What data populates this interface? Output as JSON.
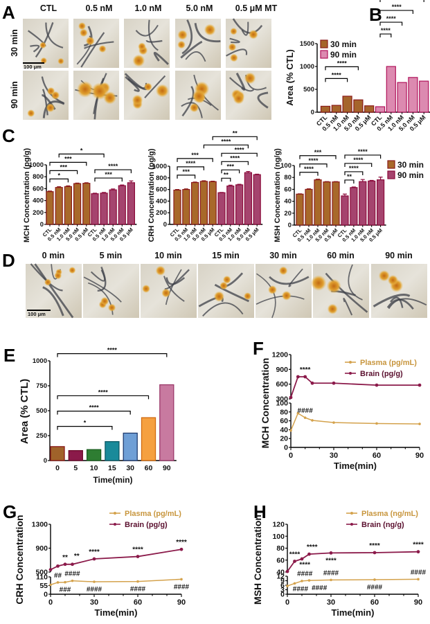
{
  "labels": {
    "A": "A",
    "B": "B",
    "C": "C",
    "D": "D",
    "E": "E",
    "F": "F",
    "G": "G",
    "H": "H"
  },
  "panel_A": {
    "columns": [
      "CTL",
      "0.5 nM",
      "1.0 nM",
      "5.0 nM",
      "0.5 μM MT"
    ],
    "rows": [
      "30 min",
      "90 min"
    ],
    "scale_bar": "100 μm"
  },
  "panel_D": {
    "columns": [
      "0 min",
      "5 min",
      "10 min",
      "15 min",
      "30 min",
      "60 min",
      "90 min"
    ],
    "scale_bar": "100 μm"
  },
  "chart_data": [
    {
      "panel": "B",
      "type": "bar",
      "categories": [
        "CTL",
        "0.5 nM",
        "1.0 nM",
        "5.0 nM",
        "0.5 μM"
      ],
      "series": [
        {
          "name": "30 min",
          "values": [
            130,
            150,
            350,
            270,
            140
          ],
          "color": "#a5652b",
          "edge": "#8b1a1a"
        },
        {
          "name": "90 min",
          "values": [
            120,
            1000,
            650,
            760,
            680
          ],
          "color": "#dc8ab0",
          "edge": "#b0125a"
        }
      ],
      "ylabel": "Area (% CTL)",
      "ylim": [
        0,
        1500
      ],
      "yticks": [
        0,
        500,
        1000,
        1500
      ],
      "legend": "top-left",
      "comparisons": [
        {
          "from": [
            0,
            0
          ],
          "to": [
            0,
            2
          ],
          "label": "****"
        },
        {
          "from": [
            0,
            0
          ],
          "to": [
            0,
            3
          ],
          "label": "****"
        },
        {
          "from": [
            1,
            0
          ],
          "to": [
            1,
            1
          ],
          "label": "****"
        },
        {
          "from": [
            1,
            0
          ],
          "to": [
            1,
            2
          ],
          "label": "****"
        },
        {
          "from": [
            1,
            0
          ],
          "to": [
            1,
            3
          ],
          "label": "****"
        },
        {
          "from": [
            1,
            0
          ],
          "to": [
            1,
            4
          ],
          "label": "****"
        }
      ]
    },
    {
      "panel": "C-MCH",
      "type": "bar",
      "categories": [
        "CTL",
        "0.5 nM",
        "1.0 nM",
        "5.0 nM",
        "0.5 μM"
      ],
      "series": [
        {
          "name": "30 min",
          "values": [
            550,
            620,
            635,
            685,
            690
          ],
          "errors": [
            10,
            12,
            12,
            8,
            10
          ],
          "color": "#a8692a",
          "edge": "#8b1a1a"
        },
        {
          "name": "90 min",
          "values": [
            515,
            525,
            580,
            650,
            700
          ],
          "errors": [
            8,
            12,
            15,
            12,
            30
          ],
          "color": "#a5446e",
          "edge": "#8b0a3a"
        }
      ],
      "ylabel": "MCH Concentration (pg/g)",
      "ylim": [
        0,
        1000
      ],
      "yticks": [
        0,
        200,
        400,
        600,
        800,
        1000
      ],
      "comparisons": [
        {
          "from": [
            0,
            0
          ],
          "to": [
            0,
            2
          ],
          "label": "*"
        },
        {
          "from": [
            0,
            0
          ],
          "to": [
            0,
            3
          ],
          "label": "***"
        },
        {
          "from": [
            0,
            0
          ],
          "to": [
            0,
            4
          ],
          "label": "***"
        },
        {
          "from": [
            0,
            1
          ],
          "to": [
            1,
            1
          ],
          "label": "*"
        },
        {
          "from": [
            1,
            0
          ],
          "to": [
            1,
            3
          ],
          "label": "***"
        },
        {
          "from": [
            1,
            0
          ],
          "to": [
            1,
            4
          ],
          "label": "****"
        }
      ]
    },
    {
      "panel": "C-CRH",
      "type": "bar",
      "categories": [
        "CTL",
        "0.5 nM",
        "1.0 nM",
        "5.0 nM",
        "0.5 μM"
      ],
      "series": [
        {
          "name": "30 min",
          "values": [
            590,
            600,
            720,
            740,
            735
          ],
          "errors": [
            10,
            10,
            8,
            10,
            8
          ],
          "color": "#a8692a",
          "edge": "#8b1a1a"
        },
        {
          "name": "90 min",
          "values": [
            545,
            660,
            680,
            890,
            855
          ],
          "errors": [
            5,
            15,
            10,
            20,
            8
          ],
          "color": "#a5446e",
          "edge": "#8b0a3a"
        }
      ],
      "ylabel": "CRH Concentration (pg/g)",
      "ylim": [
        0,
        1000
      ],
      "yticks": [
        0,
        200,
        400,
        600,
        800,
        1000
      ],
      "comparisons": [
        {
          "from": [
            0,
            0
          ],
          "to": [
            0,
            2
          ],
          "label": "***"
        },
        {
          "from": [
            0,
            0
          ],
          "to": [
            0,
            3
          ],
          "label": "****"
        },
        {
          "from": [
            0,
            0
          ],
          "to": [
            0,
            4
          ],
          "label": "***"
        },
        {
          "from": [
            1,
            0
          ],
          "to": [
            1,
            1
          ],
          "label": "**"
        },
        {
          "from": [
            1,
            0
          ],
          "to": [
            1,
            2
          ],
          "label": "***"
        },
        {
          "from": [
            1,
            0
          ],
          "to": [
            1,
            3
          ],
          "label": "****"
        },
        {
          "from": [
            1,
            0
          ],
          "to": [
            1,
            4
          ],
          "label": "****"
        },
        {
          "from": [
            0,
            3
          ],
          "to": [
            1,
            3
          ],
          "label": "****"
        },
        {
          "from": [
            0,
            4
          ],
          "to": [
            1,
            4
          ],
          "label": "**"
        }
      ]
    },
    {
      "panel": "C-MSH",
      "type": "bar",
      "categories": [
        "CTL",
        "0.5 nM",
        "1.0 nM",
        "5.0 nM",
        "0.5 μM"
      ],
      "series": [
        {
          "name": "30 min",
          "values": [
            52,
            60,
            76,
            72.5,
            72.5
          ],
          "errors": [
            0.5,
            1,
            1,
            0.5,
            0.5
          ],
          "color": "#a8692a",
          "edge": "#8b1a1a"
        },
        {
          "name": "90 min",
          "values": [
            49,
            63,
            73,
            74,
            76
          ],
          "errors": [
            3,
            1,
            3.5,
            1,
            4.5
          ],
          "color": "#a5446e",
          "edge": "#8b0a3a"
        }
      ],
      "ylabel": "MSH Concentration (ng/g)",
      "ylim": [
        0,
        100
      ],
      "yticks": [
        0,
        20,
        40,
        60,
        80,
        100
      ],
      "legend": "right",
      "comparisons": [
        {
          "from": [
            0,
            0
          ],
          "to": [
            0,
            2
          ],
          "label": "****"
        },
        {
          "from": [
            0,
            0
          ],
          "to": [
            0,
            3
          ],
          "label": "****"
        },
        {
          "from": [
            0,
            0
          ],
          "to": [
            0,
            4
          ],
          "label": "***"
        },
        {
          "from": [
            1,
            0
          ],
          "to": [
            1,
            1
          ],
          "label": "**"
        },
        {
          "from": [
            1,
            0
          ],
          "to": [
            1,
            2
          ],
          "label": "****"
        },
        {
          "from": [
            1,
            0
          ],
          "to": [
            1,
            3
          ],
          "label": "****"
        },
        {
          "from": [
            1,
            0
          ],
          "to": [
            1,
            4
          ],
          "label": "****"
        }
      ]
    },
    {
      "panel": "E",
      "type": "bar",
      "categories": [
        "0",
        "5",
        "10",
        "15",
        "30",
        "60",
        "90"
      ],
      "values": [
        140,
        100,
        110,
        190,
        275,
        430,
        760
      ],
      "colors": [
        "#a0622a",
        "#8b1a4a",
        "#2e7d32",
        "#1a8a9a",
        "#6f9fd6",
        "#f5a040",
        "#c87aa0"
      ],
      "edges": [
        "#8b1a1a",
        "#6b0a2a",
        "#1b5e20",
        "#0d5a66",
        "#1f3a6e",
        "#d06a10",
        "#9b3a6a"
      ],
      "xlabel": "Time(min)",
      "ylabel": "Area (% CTL)",
      "ylim": [
        0,
        1000
      ],
      "yticks": [
        0,
        250,
        500,
        750,
        1000
      ],
      "comparisons": [
        {
          "from": 0,
          "to": 3,
          "label": "*"
        },
        {
          "from": 0,
          "to": 4,
          "label": "****"
        },
        {
          "from": 0,
          "to": 5,
          "label": "****"
        },
        {
          "from": 0,
          "to": 6,
          "label": "****"
        }
      ]
    },
    {
      "panel": "F",
      "type": "line",
      "x": [
        0,
        5,
        10,
        15,
        30,
        60,
        90
      ],
      "xticks": [
        0,
        30,
        60,
        90
      ],
      "xlabel": "Time(min)",
      "ylabel": "MCH Concentration",
      "ylim_top": [
        300,
        1200
      ],
      "yticks_top": [
        300,
        600,
        900,
        1200
      ],
      "ylim_bottom": [
        0,
        100
      ],
      "yticks_bottom": [
        0,
        20,
        40,
        60,
        80,
        100
      ],
      "series": [
        {
          "name": "Plasma (pg/mL)",
          "axis": "bottom",
          "color": "#d4a24c",
          "values": [
            38,
            77,
            67,
            61,
            56,
            54,
            53
          ]
        },
        {
          "name": "Brain (pg/g)",
          "axis": "top",
          "color": "#8b1a4a",
          "values": [
            330,
            750,
            750,
            620,
            620,
            580,
            580
          ]
        }
      ],
      "legend": "top-right",
      "annotations": [
        {
          "series": 1,
          "x": 10,
          "label": "****",
          "position": "above"
        },
        {
          "series": 0,
          "x": 10,
          "label": "####",
          "position": "above"
        }
      ]
    },
    {
      "panel": "G",
      "type": "line",
      "x": [
        0,
        5,
        10,
        15,
        30,
        60,
        90
      ],
      "xticks": [
        0,
        30,
        60,
        90
      ],
      "xlabel": "Time(min)",
      "ylabel": "CRH Concentration",
      "ylim_top": [
        500,
        1300
      ],
      "yticks_top": [
        500,
        900,
        1300
      ],
      "ylim_bottom": [
        0,
        110
      ],
      "yticks_bottom": [
        0,
        55,
        110
      ],
      "series": [
        {
          "name": "Plasma (pg/mL)",
          "axis": "bottom",
          "color": "#d4a24c",
          "values": [
            60,
            75,
            76,
            85,
            79,
            81,
            95
          ]
        },
        {
          "name": "Brain (pg/g)",
          "axis": "top",
          "color": "#8b1a4a",
          "values": [
            540,
            600,
            630,
            630,
            720,
            760,
            880
          ]
        }
      ],
      "legend": "top-right",
      "annotations": [
        {
          "series": 1,
          "x": 10,
          "label": "**",
          "position": "above"
        },
        {
          "series": 1,
          "x": 18,
          "label": "**",
          "position": "above"
        },
        {
          "series": 1,
          "x": 30,
          "label": "****",
          "position": "above"
        },
        {
          "series": 1,
          "x": 60,
          "label": "****",
          "position": "above"
        },
        {
          "series": 1,
          "x": 90,
          "label": "****",
          "position": "above"
        },
        {
          "series": 0,
          "x": 5,
          "label": "##",
          "position": "above"
        },
        {
          "series": 0,
          "x": 15,
          "label": "####",
          "position": "above"
        },
        {
          "series": 0,
          "x": 10,
          "label": "###",
          "position": "below"
        },
        {
          "series": 0,
          "x": 30,
          "label": "####",
          "position": "below"
        },
        {
          "series": 0,
          "x": 60,
          "label": "####",
          "position": "below"
        },
        {
          "series": 0,
          "x": 90,
          "label": "####",
          "position": "below"
        }
      ]
    },
    {
      "panel": "H",
      "type": "line",
      "x": [
        0,
        5,
        10,
        15,
        30,
        60,
        90
      ],
      "xticks": [
        0,
        30,
        60,
        90
      ],
      "xlabel": "Time(min)",
      "ylabel": "MSH Concentration",
      "ylim_top": [
        40,
        120
      ],
      "yticks_top": [
        40,
        60,
        80,
        100,
        120
      ],
      "ylim_bottom": [
        0,
        12
      ],
      "yticks_bottom": [
        0,
        3,
        6,
        9,
        12
      ],
      "series": [
        {
          "name": "Plasma (ng/mL)",
          "axis": "bottom",
          "color": "#d4a24c",
          "values": [
            5.5,
            7.2,
            8.8,
            9.2,
            9.5,
            9.7,
            10
          ]
        },
        {
          "name": "Brain (ng/g)",
          "axis": "top",
          "color": "#8b1a4a",
          "values": [
            41,
            58,
            62,
            70,
            72,
            72.5,
            74
          ]
        }
      ],
      "legend": "top-right",
      "annotations": [
        {
          "series": 1,
          "x": 5,
          "label": "****",
          "position": "above"
        },
        {
          "series": 1,
          "x": 12,
          "label": "****",
          "position": "below"
        },
        {
          "series": 1,
          "x": 17,
          "label": "****",
          "position": "above"
        },
        {
          "series": 1,
          "x": 30,
          "label": "****",
          "position": "below"
        },
        {
          "series": 1,
          "x": 60,
          "label": "****",
          "position": "above"
        },
        {
          "series": 1,
          "x": 90,
          "label": "****",
          "position": "above"
        },
        {
          "series": 0,
          "x": 12,
          "label": "####",
          "position": "above"
        },
        {
          "series": 0,
          "x": 9,
          "label": "####",
          "position": "below"
        },
        {
          "series": 0,
          "x": 22,
          "label": "####",
          "position": "below"
        },
        {
          "series": 0,
          "x": 30,
          "label": "####",
          "position": "above"
        },
        {
          "series": 0,
          "x": 60,
          "label": "####",
          "position": "below"
        },
        {
          "series": 0,
          "x": 90,
          "label": "####",
          "position": "above"
        }
      ]
    }
  ]
}
